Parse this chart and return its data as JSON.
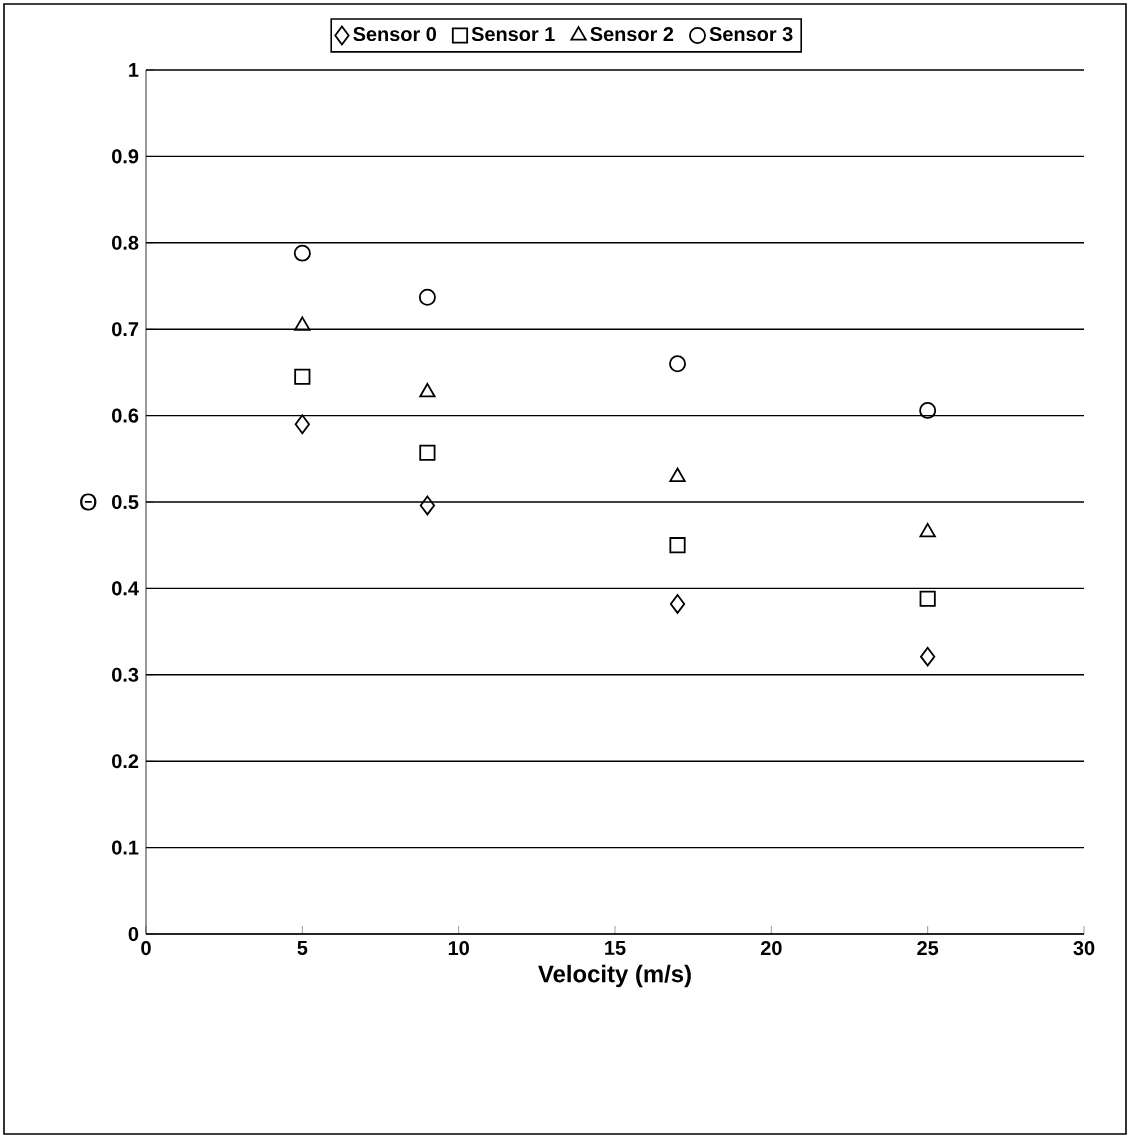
{
  "chart_data": {
    "type": "scatter",
    "xlabel": "Velocity (m/s)",
    "ylabel": "Θ",
    "x": [
      5,
      9,
      17,
      25
    ],
    "series": [
      {
        "name": "Sensor 0",
        "color": "#000000",
        "marker": "diamond",
        "values": [
          0.59,
          0.496,
          0.382,
          0.321
        ]
      },
      {
        "name": "Sensor 1",
        "color": "#000000",
        "marker": "square",
        "values": [
          0.645,
          0.557,
          0.45,
          0.388
        ]
      },
      {
        "name": "Sensor 2",
        "color": "#000000",
        "marker": "triangle",
        "values": [
          0.704,
          0.627,
          0.529,
          0.465
        ]
      },
      {
        "name": "Sensor 3",
        "color": "#000000",
        "marker": "circle",
        "values": [
          0.788,
          0.737,
          0.66,
          0.606
        ]
      }
    ],
    "xlim": [
      0,
      30
    ],
    "xticks": [
      0,
      5,
      10,
      15,
      20,
      25,
      30
    ],
    "ylim": [
      0,
      1
    ],
    "yticks": [
      0,
      0.1,
      0.2,
      0.3,
      0.4,
      0.5,
      0.6,
      0.7,
      0.8,
      0.9,
      1
    ],
    "grid": "y",
    "legend": "top"
  }
}
